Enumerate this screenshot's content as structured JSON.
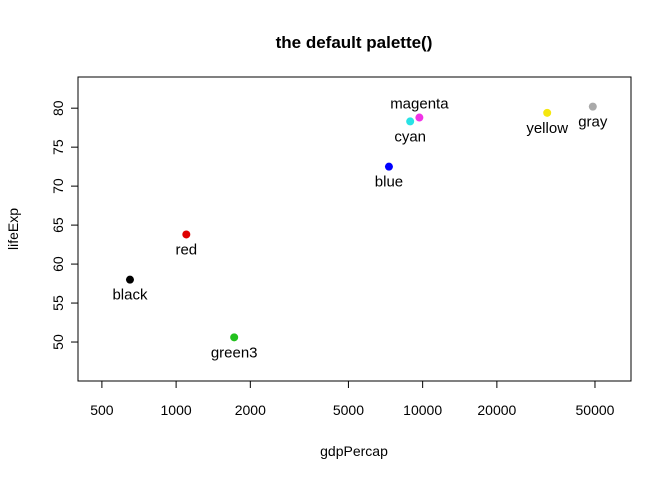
{
  "chart_data": {
    "type": "scatter",
    "title": "the default palette()",
    "xlabel": "gdpPercap",
    "ylabel": "lifeExp",
    "x_scale": "log",
    "xlim": [
      400,
      70000
    ],
    "ylim": [
      45,
      84
    ],
    "x_ticks": [
      500,
      1000,
      2000,
      5000,
      10000,
      20000,
      50000
    ],
    "y_ticks": [
      50,
      55,
      60,
      65,
      70,
      75,
      80
    ],
    "grid": false,
    "points": [
      {
        "label": "black",
        "x": 650,
        "y": 58.0,
        "color": "#000000",
        "label_pos": "below"
      },
      {
        "label": "red",
        "x": 1100,
        "y": 63.8,
        "color": "#DF0000",
        "label_pos": "below"
      },
      {
        "label": "green3",
        "x": 1720,
        "y": 50.6,
        "color": "#22C11E",
        "label_pos": "below"
      },
      {
        "label": "blue",
        "x": 7300,
        "y": 72.5,
        "color": "#0000FF",
        "label_pos": "below"
      },
      {
        "label": "cyan",
        "x": 8900,
        "y": 78.3,
        "color": "#28E2E5",
        "label_pos": "below"
      },
      {
        "label": "magenta",
        "x": 9700,
        "y": 78.8,
        "color": "#F033E6",
        "label_pos": "above"
      },
      {
        "label": "yellow",
        "x": 32000,
        "y": 79.4,
        "color": "#F5E70F",
        "label_pos": "below"
      },
      {
        "label": "gray",
        "x": 49000,
        "y": 80.2,
        "color": "#A9A9A9",
        "label_pos": "below"
      }
    ]
  }
}
